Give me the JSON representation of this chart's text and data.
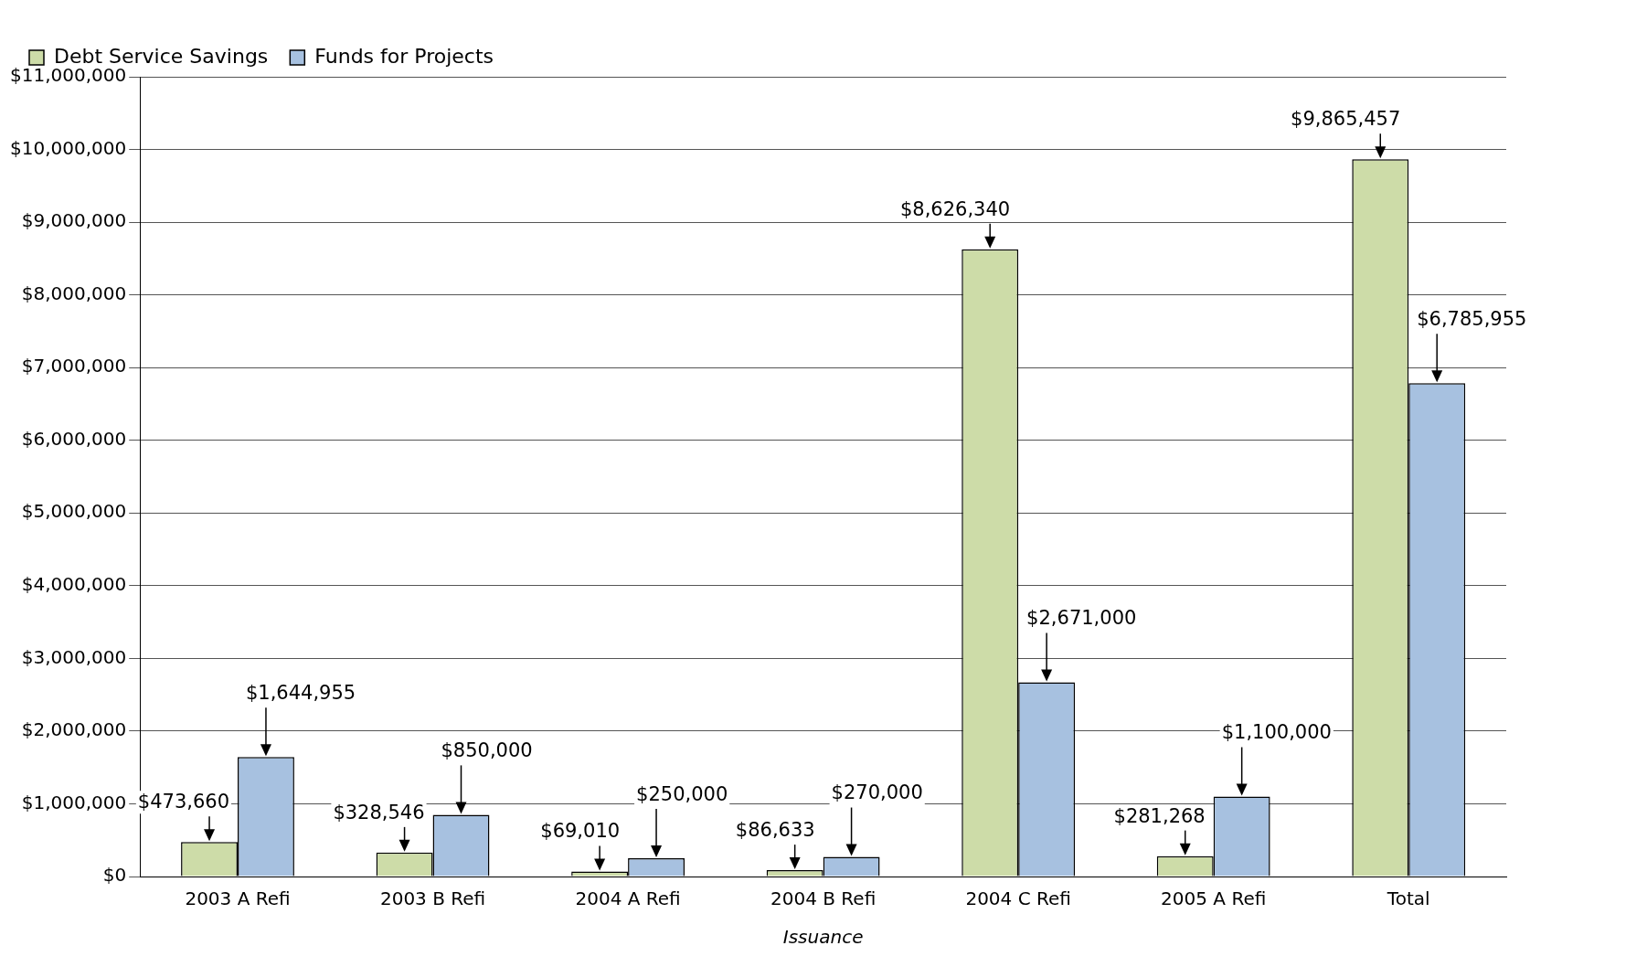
{
  "chart_data": {
    "type": "bar",
    "xlabel": "Issuance",
    "categories": [
      "2003 A Refi",
      "2003 B Refi",
      "2004 A Refi",
      "2004 B Refi",
      "2004 C Refi",
      "2005 A Refi",
      "Total"
    ],
    "series": [
      {
        "name": "Debt Service Savings",
        "color": "#cddca8",
        "values": [
          473660,
          328546,
          69010,
          86633,
          8626340,
          281268,
          9865457
        ],
        "value_labels": [
          "$473,660",
          "$328,546",
          "$69,010",
          "$86,633",
          "$8,626,340",
          "$281,268",
          "$9,865,457"
        ]
      },
      {
        "name": "Funds for Projects",
        "color": "#a7c1e0",
        "values": [
          1644955,
          850000,
          250000,
          270000,
          2671000,
          1100000,
          6785955
        ],
        "value_labels": [
          "$1,644,955",
          "$850,000",
          "$250,000",
          "$270,000",
          "$2,671,000",
          "$1,100,000",
          "$6,785,955"
        ]
      }
    ],
    "ylim": [
      0,
      11000000
    ],
    "yticks": [
      {
        "value": 0,
        "label": "$0"
      },
      {
        "value": 1000000,
        "label": "$1,000,000"
      },
      {
        "value": 2000000,
        "label": "$2,000,000"
      },
      {
        "value": 3000000,
        "label": "$3,000,000"
      },
      {
        "value": 4000000,
        "label": "$4,000,000"
      },
      {
        "value": 5000000,
        "label": "$5,000,000"
      },
      {
        "value": 6000000,
        "label": "$6,000,000"
      },
      {
        "value": 7000000,
        "label": "$7,000,000"
      },
      {
        "value": 8000000,
        "label": "$8,000,000"
      },
      {
        "value": 9000000,
        "label": "$9,000,000"
      },
      {
        "value": 10000000,
        "label": "$10,000,000"
      },
      {
        "value": 11000000,
        "label": "$11,000,000"
      }
    ],
    "grid": "y",
    "legend": "top left"
  }
}
